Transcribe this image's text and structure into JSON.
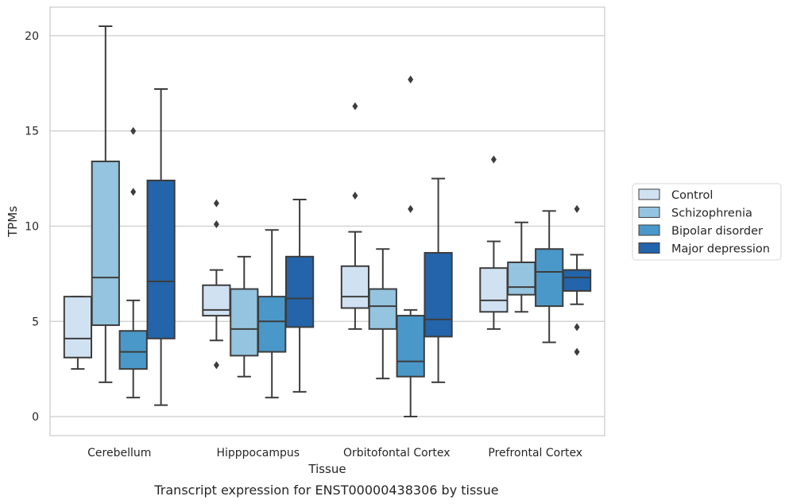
{
  "chart_data": {
    "type": "boxplot",
    "xlabel": "Tissue",
    "ylabel": "TPMs",
    "caption": "Transcript expression for ENST00000438306 by tissue",
    "categories": [
      "Cerebellum",
      "Hipppocampus",
      "Orbitofontal Cortex",
      "Prefrontal Cortex"
    ],
    "ylim": [
      -1,
      21.5
    ],
    "yticks": [
      0,
      5,
      10,
      15,
      20
    ],
    "grid": true,
    "legend_position": "right",
    "series": [
      {
        "name": "Control",
        "color": "#d0e1f2",
        "boxes": [
          {
            "whislo": 2.5,
            "q1": 3.1,
            "med": 4.1,
            "q3": 6.3,
            "whishi": 6.3,
            "fliers": []
          },
          {
            "whislo": 4.0,
            "q1": 5.3,
            "med": 5.6,
            "q3": 6.9,
            "whishi": 7.7,
            "fliers": [
              2.7,
              10.1,
              11.2
            ]
          },
          {
            "whislo": 4.6,
            "q1": 5.7,
            "med": 6.3,
            "q3": 7.9,
            "whishi": 9.7,
            "fliers": [
              11.6,
              16.3
            ]
          },
          {
            "whislo": 4.6,
            "q1": 5.5,
            "med": 6.1,
            "q3": 7.8,
            "whishi": 9.2,
            "fliers": [
              13.5
            ]
          }
        ]
      },
      {
        "name": "Schizophrenia",
        "color": "#94c4df",
        "boxes": [
          {
            "whislo": 1.8,
            "q1": 4.8,
            "med": 7.3,
            "q3": 13.4,
            "whishi": 20.5,
            "fliers": []
          },
          {
            "whislo": 2.1,
            "q1": 3.2,
            "med": 4.6,
            "q3": 6.7,
            "whishi": 8.4,
            "fliers": []
          },
          {
            "whislo": 2.0,
            "q1": 4.6,
            "med": 5.8,
            "q3": 6.7,
            "whishi": 8.8,
            "fliers": []
          },
          {
            "whislo": 5.5,
            "q1": 6.4,
            "med": 6.8,
            "q3": 8.1,
            "whishi": 10.2,
            "fliers": []
          }
        ]
      },
      {
        "name": "Bipolar disorder",
        "color": "#4a98c9",
        "boxes": [
          {
            "whislo": 1.0,
            "q1": 2.5,
            "med": 3.4,
            "q3": 4.5,
            "whishi": 6.1,
            "fliers": [
              11.8,
              15.0
            ]
          },
          {
            "whislo": 1.0,
            "q1": 3.4,
            "med": 5.0,
            "q3": 6.3,
            "whishi": 9.8,
            "fliers": []
          },
          {
            "whislo": 0.0,
            "q1": 2.1,
            "med": 2.9,
            "q3": 5.3,
            "whishi": 5.6,
            "fliers": [
              10.9,
              17.7
            ]
          },
          {
            "whislo": 3.9,
            "q1": 5.8,
            "med": 7.6,
            "q3": 8.8,
            "whishi": 10.8,
            "fliers": []
          }
        ]
      },
      {
        "name": "Major depression",
        "color": "#2364aa",
        "boxes": [
          {
            "whislo": 0.6,
            "q1": 4.1,
            "med": 7.1,
            "q3": 12.4,
            "whishi": 17.2,
            "fliers": []
          },
          {
            "whislo": 1.3,
            "q1": 4.7,
            "med": 6.2,
            "q3": 8.4,
            "whishi": 11.4,
            "fliers": []
          },
          {
            "whislo": 1.8,
            "q1": 4.2,
            "med": 5.1,
            "q3": 8.6,
            "whishi": 12.5,
            "fliers": []
          },
          {
            "whislo": 5.9,
            "q1": 6.6,
            "med": 7.3,
            "q3": 7.7,
            "whishi": 8.5,
            "fliers": [
              3.4,
              4.7,
              10.9
            ]
          }
        ]
      }
    ]
  }
}
